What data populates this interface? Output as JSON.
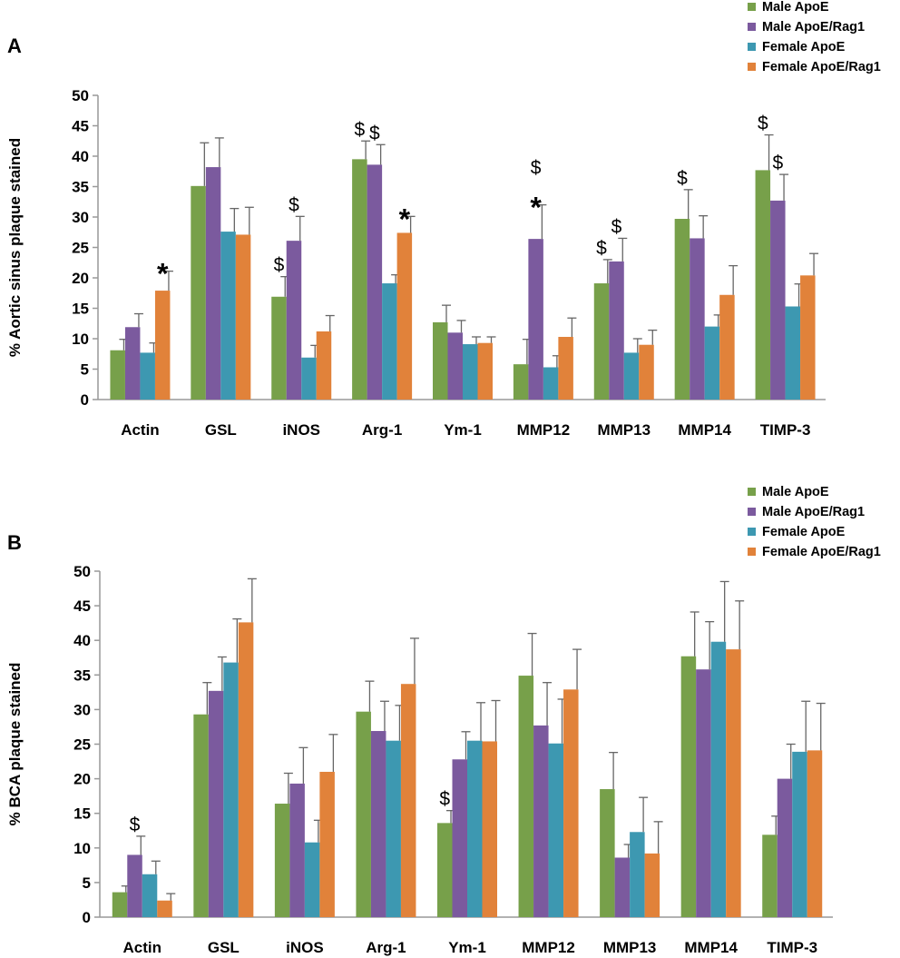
{
  "colors": {
    "Male ApoE": "#77a04a",
    "Male ApoE/Rag1": "#7b5a9e",
    "Female ApoE": "#3d98b1",
    "Female ApoE/Rag1": "#e1823a",
    "axis": "#999999",
    "error": "#666666"
  },
  "chart_data": [
    {
      "type": "bar",
      "panel": "A",
      "ylabel": "% Aortic sinus plaque stained",
      "ylim": [
        0,
        50
      ],
      "yticks": [
        0,
        5,
        10,
        15,
        20,
        25,
        30,
        35,
        40,
        45,
        50
      ],
      "categories": [
        "Actin",
        "GSL",
        "iNOS",
        "Arg-1",
        "Ym-1",
        "MMP12",
        "MMP13",
        "MMP14",
        "TIMP-3"
      ],
      "legend": [
        "Male ApoE",
        "Male ApoE/Rag1",
        "Female ApoE",
        "Female ApoE/Rag1"
      ],
      "series": [
        {
          "name": "Male ApoE",
          "values": [
            8.1,
            35.1,
            16.9,
            39.5,
            12.7,
            5.8,
            19.1,
            29.7,
            37.7
          ],
          "errors": [
            1.8,
            7.1,
            3.3,
            3.0,
            2.8,
            4.1,
            3.9,
            4.8,
            5.8
          ]
        },
        {
          "name": "Male ApoE/Rag1",
          "values": [
            11.9,
            38.2,
            26.1,
            38.6,
            11.0,
            26.4,
            22.7,
            26.5,
            32.7
          ],
          "errors": [
            2.2,
            4.8,
            4.0,
            3.3,
            2.0,
            5.6,
            3.8,
            3.7,
            4.3
          ]
        },
        {
          "name": "Female ApoE",
          "values": [
            7.7,
            27.6,
            6.9,
            19.1,
            9.1,
            5.3,
            7.7,
            12.0,
            15.3
          ],
          "errors": [
            1.6,
            3.8,
            2.0,
            1.4,
            1.2,
            1.9,
            2.3,
            1.9,
            3.7
          ]
        },
        {
          "name": "Female ApoE/Rag1",
          "values": [
            17.9,
            27.1,
            11.2,
            27.4,
            9.3,
            10.3,
            9.0,
            17.2,
            20.4
          ],
          "errors": [
            3.2,
            4.5,
            2.6,
            2.7,
            1.0,
            3.1,
            2.4,
            4.8,
            3.6
          ]
        }
      ],
      "annotations": [
        {
          "category": "Actin",
          "series": "Female ApoE/Rag1",
          "text": "*"
        },
        {
          "category": "iNOS",
          "series": "Male ApoE",
          "text": "$"
        },
        {
          "category": "iNOS",
          "series": "Male ApoE/Rag1",
          "text": "$"
        },
        {
          "category": "Arg-1",
          "series": "Male ApoE",
          "text": "$"
        },
        {
          "category": "Arg-1",
          "series": "Male ApoE/Rag1",
          "text": "$"
        },
        {
          "category": "Arg-1",
          "series": "Female ApoE/Rag1",
          "text": "*"
        },
        {
          "category": "MMP12",
          "series": "Male ApoE/Rag1",
          "text": "*"
        },
        {
          "category": "MMP12",
          "series": "Male ApoE/Rag1",
          "text": "$"
        },
        {
          "category": "MMP13",
          "series": "Male ApoE",
          "text": "$"
        },
        {
          "category": "MMP13",
          "series": "Male ApoE/Rag1",
          "text": "$"
        },
        {
          "category": "MMP14",
          "series": "Male ApoE",
          "text": "$"
        },
        {
          "category": "TIMP-3",
          "series": "Male ApoE",
          "text": "$"
        },
        {
          "category": "TIMP-3",
          "series": "Male ApoE/Rag1",
          "text": "$"
        }
      ]
    },
    {
      "type": "bar",
      "panel": "B",
      "ylabel": "% BCA plaque stained",
      "ylim": [
        0,
        50
      ],
      "yticks": [
        0,
        5,
        10,
        15,
        20,
        25,
        30,
        35,
        40,
        45,
        50
      ],
      "categories": [
        "Actin",
        "GSL",
        "iNOS",
        "Arg-1",
        "Ym-1",
        "MMP12",
        "MMP13",
        "MMP14",
        "TIMP-3"
      ],
      "legend": [
        "Male ApoE",
        "Male ApoE/Rag1",
        "Female ApoE",
        "Female ApoE/Rag1"
      ],
      "series": [
        {
          "name": "Male ApoE",
          "values": [
            3.6,
            29.3,
            16.4,
            29.7,
            13.6,
            34.9,
            18.5,
            37.7,
            11.9
          ],
          "errors": [
            0.9,
            4.6,
            4.4,
            4.4,
            1.8,
            6.1,
            5.3,
            6.4,
            2.7
          ]
        },
        {
          "name": "Male ApoE/Rag1",
          "values": [
            9.0,
            32.7,
            19.3,
            26.9,
            22.8,
            27.7,
            8.6,
            35.8,
            20.0
          ],
          "errors": [
            2.7,
            4.9,
            5.2,
            4.3,
            4.0,
            6.2,
            1.9,
            6.9,
            5.0
          ]
        },
        {
          "name": "Female ApoE",
          "values": [
            6.2,
            36.8,
            10.8,
            25.5,
            25.5,
            25.1,
            12.3,
            39.8,
            23.9
          ],
          "errors": [
            1.9,
            6.3,
            3.2,
            5.1,
            5.5,
            6.4,
            5.0,
            8.7,
            7.3
          ]
        },
        {
          "name": "Female ApoE/Rag1",
          "values": [
            2.4,
            42.6,
            21.0,
            33.7,
            25.4,
            32.9,
            9.2,
            38.7,
            24.1
          ],
          "errors": [
            1.0,
            6.3,
            5.4,
            6.6,
            5.9,
            5.8,
            4.6,
            7.0,
            6.8
          ]
        }
      ],
      "annotations": [
        {
          "category": "Actin",
          "series": "Male ApoE/Rag1",
          "text": "$"
        },
        {
          "category": "Ym-1",
          "series": "Male ApoE",
          "text": "$"
        }
      ]
    }
  ]
}
